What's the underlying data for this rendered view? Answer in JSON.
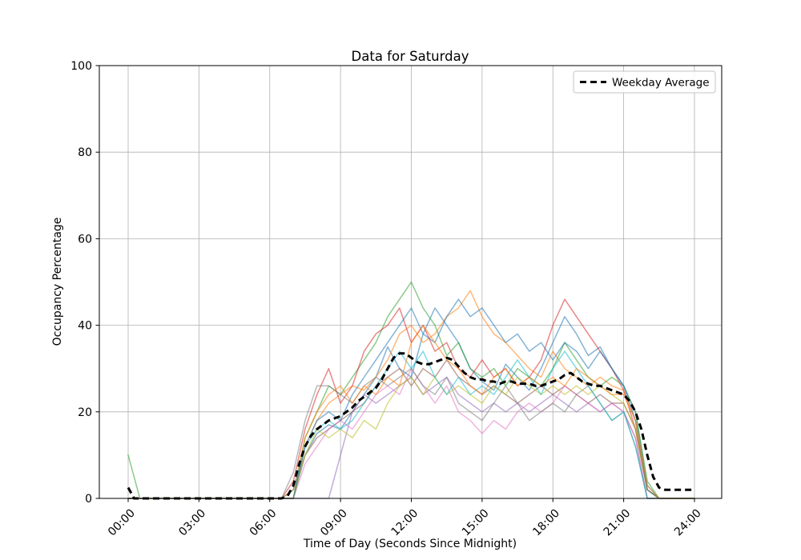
{
  "chart_data": {
    "type": "line",
    "title": "Data for Saturday",
    "xlabel": "Time of Day (Seconds Since Midnight)",
    "ylabel": "Occupancy Percentage",
    "x_unit": "hours",
    "xlim_hours": [
      -1.25,
      25.25
    ],
    "ylim": [
      0,
      100
    ],
    "grid": true,
    "x_tick_hours": [
      0,
      3,
      6,
      9,
      12,
      15,
      18,
      21,
      24
    ],
    "x_tick_labels": [
      "00:00",
      "03:00",
      "06:00",
      "09:00",
      "12:00",
      "15:00",
      "18:00",
      "21:00",
      "24:00"
    ],
    "y_ticks": [
      0,
      20,
      40,
      60,
      80,
      100
    ],
    "legend": {
      "label": "Weekday Average",
      "position": "upper right"
    },
    "style": {
      "grid_color": "#b0b0b0",
      "spine_color": "#000000",
      "text_color": "#000000",
      "series_alpha": 0.55,
      "series_width": 1.5,
      "average_color": "#000000",
      "average_width": 3,
      "average_dash": [
        8,
        5
      ],
      "legend_edge_color": "#c4c4c4",
      "legend_face_color": "#ffffff"
    },
    "series": [
      {
        "id": "line-1",
        "color": "#1f77b4",
        "step_h": 0.5,
        "values": [
          0,
          0,
          0,
          0,
          0,
          0,
          0,
          0,
          0,
          0,
          0,
          0,
          0,
          0,
          0,
          10,
          15,
          17,
          16,
          20,
          24,
          28,
          35,
          30,
          28,
          38,
          44,
          40,
          36,
          30,
          27,
          25,
          31,
          28,
          25,
          30,
          36,
          42,
          38,
          33,
          35,
          30,
          26,
          20,
          3,
          0,
          0,
          0,
          0
        ]
      },
      {
        "id": "line-2",
        "color": "#ff7f0e",
        "step_h": 0.5,
        "values": [
          0,
          0,
          0,
          0,
          0,
          0,
          0,
          0,
          0,
          0,
          0,
          0,
          0,
          0,
          0,
          12,
          18,
          22,
          24,
          26,
          25,
          28,
          32,
          38,
          40,
          36,
          38,
          42,
          44,
          48,
          42,
          38,
          36,
          33,
          30,
          28,
          34,
          30,
          28,
          26,
          28,
          26,
          25,
          18,
          2,
          0,
          0,
          0,
          0
        ]
      },
      {
        "id": "line-3",
        "color": "#2ca02c",
        "step_h": 0.5,
        "values": [
          10,
          0,
          0,
          0,
          0,
          0,
          0,
          0,
          0,
          0,
          0,
          0,
          0,
          0,
          0,
          14,
          20,
          26,
          24,
          28,
          32,
          36,
          42,
          46,
          50,
          44,
          40,
          33,
          36,
          30,
          28,
          30,
          26,
          30,
          28,
          26,
          30,
          36,
          32,
          28,
          26,
          28,
          26,
          20,
          4,
          0,
          0,
          0,
          0
        ]
      },
      {
        "id": "line-4",
        "color": "#d62728",
        "step_h": 0.5,
        "values": [
          0,
          0,
          0,
          0,
          0,
          0,
          0,
          0,
          0,
          0,
          0,
          0,
          0,
          0,
          4,
          16,
          24,
          30,
          22,
          26,
          34,
          38,
          40,
          44,
          36,
          40,
          34,
          36,
          30,
          28,
          32,
          28,
          30,
          26,
          28,
          32,
          40,
          46,
          42,
          38,
          34,
          30,
          25,
          16,
          2,
          0,
          0,
          0,
          0
        ]
      },
      {
        "id": "line-5",
        "color": "#9467bd",
        "step_h": 0.5,
        "values": [
          0,
          0,
          0,
          0,
          0,
          0,
          0,
          0,
          0,
          0,
          0,
          0,
          0,
          0,
          0,
          0,
          0,
          0,
          10,
          20,
          24,
          22,
          24,
          26,
          28,
          24,
          26,
          28,
          24,
          22,
          20,
          22,
          20,
          22,
          20,
          22,
          24,
          22,
          20,
          22,
          20,
          22,
          20,
          14,
          0,
          0,
          0,
          0,
          0
        ]
      },
      {
        "id": "line-6",
        "color": "#8c564b",
        "step_h": 0.5,
        "values": [
          0,
          0,
          0,
          0,
          0,
          0,
          0,
          0,
          0,
          0,
          0,
          0,
          0,
          0,
          2,
          10,
          14,
          16,
          18,
          20,
          22,
          26,
          28,
          30,
          26,
          30,
          28,
          32,
          28,
          26,
          24,
          26,
          24,
          22,
          24,
          26,
          24,
          26,
          24,
          22,
          24,
          22,
          22,
          16,
          2,
          0,
          0,
          0,
          0
        ]
      },
      {
        "id": "line-7",
        "color": "#e377c2",
        "step_h": 0.5,
        "values": [
          0,
          0,
          0,
          0,
          0,
          0,
          0,
          0,
          0,
          0,
          0,
          0,
          0,
          0,
          0,
          8,
          12,
          16,
          18,
          16,
          20,
          24,
          26,
          24,
          30,
          26,
          22,
          26,
          20,
          18,
          15,
          18,
          16,
          20,
          22,
          20,
          22,
          26,
          24,
          22,
          20,
          22,
          20,
          14,
          0,
          0,
          0,
          0,
          0
        ]
      },
      {
        "id": "line-8",
        "color": "#7f7f7f",
        "step_h": 0.5,
        "values": [
          0,
          0,
          0,
          0,
          0,
          0,
          0,
          0,
          0,
          0,
          0,
          0,
          0,
          0,
          6,
          18,
          26,
          26,
          24,
          22,
          26,
          28,
          26,
          28,
          30,
          26,
          24,
          28,
          22,
          20,
          18,
          22,
          26,
          22,
          18,
          20,
          22,
          20,
          24,
          26,
          22,
          18,
          20,
          12,
          0,
          0,
          0,
          0,
          0
        ]
      },
      {
        "id": "line-9",
        "color": "#bcbd22",
        "step_h": 0.5,
        "values": [
          0,
          0,
          0,
          0,
          0,
          0,
          0,
          0,
          0,
          0,
          0,
          0,
          0,
          0,
          0,
          10,
          16,
          14,
          16,
          14,
          18,
          16,
          22,
          26,
          28,
          24,
          28,
          24,
          26,
          24,
          22,
          26,
          24,
          28,
          26,
          24,
          26,
          24,
          26,
          24,
          26,
          24,
          22,
          16,
          2,
          0,
          0,
          0,
          0
        ]
      },
      {
        "id": "line-10",
        "color": "#17becf",
        "step_h": 0.5,
        "values": [
          0,
          0,
          0,
          0,
          0,
          0,
          0,
          0,
          0,
          0,
          0,
          0,
          0,
          0,
          2,
          12,
          16,
          18,
          16,
          18,
          22,
          26,
          30,
          34,
          30,
          34,
          28,
          24,
          28,
          24,
          26,
          24,
          28,
          32,
          28,
          24,
          30,
          34,
          30,
          26,
          22,
          18,
          20,
          12,
          0,
          0,
          0,
          0,
          0
        ]
      },
      {
        "id": "line-11",
        "color": "#1f77b4",
        "step_h": 0.5,
        "values": [
          0,
          0,
          0,
          0,
          0,
          0,
          0,
          0,
          0,
          0,
          0,
          0,
          0,
          0,
          0,
          12,
          18,
          20,
          18,
          24,
          28,
          32,
          36,
          40,
          44,
          38,
          36,
          42,
          46,
          42,
          44,
          40,
          36,
          38,
          34,
          36,
          32,
          36,
          34,
          30,
          34,
          30,
          26,
          18,
          2,
          0,
          0,
          0,
          0
        ]
      },
      {
        "id": "line-12",
        "color": "#ff7f0e",
        "step_h": 0.5,
        "values": [
          0,
          0,
          0,
          0,
          0,
          0,
          0,
          0,
          0,
          0,
          0,
          0,
          0,
          0,
          2,
          14,
          20,
          24,
          26,
          22,
          26,
          24,
          28,
          26,
          36,
          40,
          36,
          32,
          30,
          26,
          24,
          28,
          30,
          26,
          28,
          26,
          28,
          26,
          30,
          28,
          26,
          24,
          24,
          18,
          3,
          0,
          0,
          0,
          0
        ]
      }
    ],
    "average": {
      "id": "weekday-average",
      "name": "Weekday Average",
      "color": "#000000",
      "step_h": 0.25,
      "values": [
        2.5,
        0,
        0,
        0,
        0,
        0,
        0,
        0,
        0,
        0,
        0,
        0,
        0,
        0,
        0,
        0,
        0,
        0,
        0,
        0,
        0,
        0,
        0,
        0,
        0,
        0,
        0,
        0.5,
        3,
        8,
        12,
        14.5,
        16,
        17,
        18,
        18.5,
        19,
        20,
        21,
        22.5,
        23.5,
        24.5,
        25.5,
        27.5,
        30,
        32.5,
        33.5,
        33.5,
        32.5,
        31.5,
        31,
        31,
        31.5,
        32,
        32.5,
        32,
        30.5,
        29,
        28,
        27.5,
        27.5,
        27,
        27,
        26.5,
        27,
        27,
        26.5,
        26.5,
        26.5,
        26,
        26,
        26.5,
        27,
        27.5,
        28.5,
        29,
        28,
        27,
        26.5,
        26,
        26,
        25.5,
        25,
        24.5,
        24,
        22.5,
        20,
        16,
        10,
        5,
        2.5,
        2,
        2,
        2,
        2,
        2,
        2
      ]
    }
  }
}
